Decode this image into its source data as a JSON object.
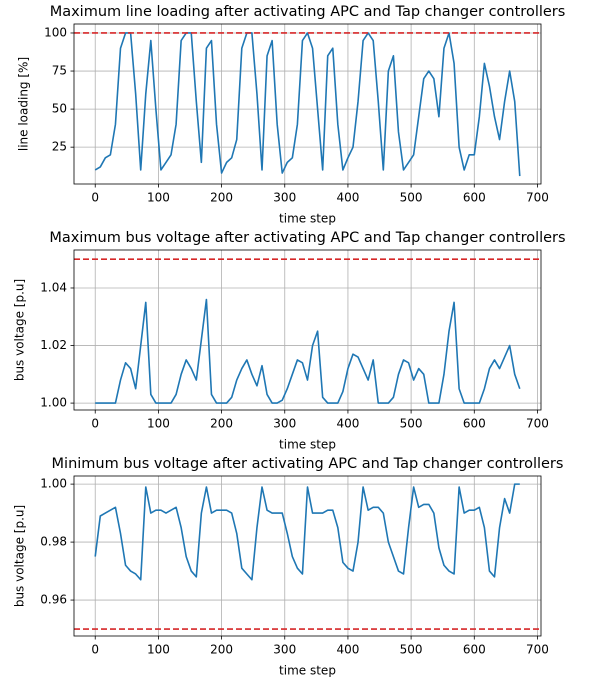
{
  "chart_data": [
    {
      "type": "line",
      "title": "Maximum line loading after activating APC and Tap changer controllers",
      "xlabel": "time step",
      "ylabel": "line loading [%]",
      "x": [
        0,
        8,
        16,
        24,
        32,
        40,
        48,
        56,
        64,
        72,
        80,
        88,
        96,
        104,
        112,
        120,
        128,
        136,
        144,
        152,
        160,
        168,
        176,
        184,
        192,
        200,
        208,
        216,
        224,
        232,
        240,
        248,
        256,
        264,
        272,
        280,
        288,
        296,
        304,
        312,
        320,
        328,
        336,
        344,
        352,
        360,
        368,
        376,
        384,
        392,
        400,
        408,
        416,
        424,
        432,
        440,
        448,
        456,
        464,
        472,
        480,
        488,
        496,
        504,
        512,
        520,
        528,
        536,
        544,
        552,
        560,
        568,
        576,
        584,
        592,
        600,
        608,
        616,
        624,
        632,
        640,
        648,
        656,
        664,
        672
      ],
      "series": [
        {
          "color": "#1f77b4",
          "values": [
            10,
            12,
            18,
            20,
            40,
            90,
            100,
            100,
            60,
            10,
            60,
            95,
            50,
            10,
            15,
            20,
            40,
            95,
            100,
            100,
            55,
            15,
            90,
            95,
            40,
            8,
            15,
            18,
            30,
            90,
            100,
            100,
            60,
            10,
            85,
            95,
            40,
            8,
            15,
            18,
            40,
            95,
            100,
            90,
            50,
            10,
            85,
            90,
            40,
            10,
            18,
            25,
            55,
            95,
            100,
            95,
            55,
            10,
            75,
            85,
            35,
            10,
            15,
            20,
            45,
            70,
            75,
            70,
            45,
            90,
            100,
            80,
            25,
            10,
            20,
            20,
            45,
            80,
            65,
            45,
            30,
            55,
            75,
            55,
            6
          ]
        }
      ],
      "threshold": {
        "value": 100,
        "color": "#d62728"
      },
      "xlim": [
        -33.6,
        705.6
      ],
      "xticks": [
        0,
        100,
        200,
        300,
        400,
        500,
        600,
        700
      ],
      "ylim": [
        0.8,
        105.9
      ],
      "yticks": [
        25,
        50,
        75,
        100
      ],
      "grid": true
    },
    {
      "type": "line",
      "title": "Maximum bus voltage after activating APC and Tap changer controllers",
      "xlabel": "time step",
      "ylabel": "bus voltage [p.u]",
      "x": [
        0,
        8,
        16,
        24,
        32,
        40,
        48,
        56,
        64,
        72,
        80,
        88,
        96,
        104,
        112,
        120,
        128,
        136,
        144,
        152,
        160,
        168,
        176,
        184,
        192,
        200,
        208,
        216,
        224,
        232,
        240,
        248,
        256,
        264,
        272,
        280,
        288,
        296,
        304,
        312,
        320,
        328,
        336,
        344,
        352,
        360,
        368,
        376,
        384,
        392,
        400,
        408,
        416,
        424,
        432,
        440,
        448,
        456,
        464,
        472,
        480,
        488,
        496,
        504,
        512,
        520,
        528,
        536,
        544,
        552,
        560,
        568,
        576,
        584,
        592,
        600,
        608,
        616,
        624,
        632,
        640,
        648,
        656,
        664,
        672
      ],
      "series": [
        {
          "color": "#1f77b4",
          "values": [
            1.0,
            1.0,
            1.0,
            1.0,
            1.0,
            1.008,
            1.014,
            1.012,
            1.005,
            1.02,
            1.035,
            1.003,
            1.0,
            1.0,
            1.0,
            1.0,
            1.003,
            1.01,
            1.015,
            1.012,
            1.008,
            1.022,
            1.036,
            1.003,
            1.0,
            1.0,
            1.0,
            1.002,
            1.008,
            1.012,
            1.015,
            1.01,
            1.006,
            1.013,
            1.003,
            1.0,
            1.0,
            1.001,
            1.005,
            1.01,
            1.015,
            1.014,
            1.008,
            1.02,
            1.025,
            1.002,
            1.0,
            1.0,
            1.0,
            1.004,
            1.012,
            1.017,
            1.016,
            1.012,
            1.008,
            1.015,
            1.0,
            1.0,
            1.0,
            1.002,
            1.01,
            1.015,
            1.014,
            1.008,
            1.012,
            1.01,
            1.0,
            1.0,
            1.0,
            1.01,
            1.025,
            1.035,
            1.005,
            1.0,
            1.0,
            1.0,
            1.0,
            1.005,
            1.012,
            1.015,
            1.012,
            1.016,
            1.02,
            1.01,
            1.005
          ]
        }
      ],
      "threshold": {
        "value": 1.05,
        "color": "#d62728"
      },
      "xlim": [
        -33.6,
        705.6
      ],
      "xticks": [
        0,
        100,
        200,
        300,
        400,
        500,
        600,
        700
      ],
      "ylim": [
        0.9976,
        1.0532
      ],
      "yticks": [
        {
          "value": 1.0,
          "label": "1.00"
        },
        {
          "value": 1.02,
          "label": "1.02"
        },
        {
          "value": 1.04,
          "label": "1.04"
        }
      ],
      "grid": true
    },
    {
      "type": "line",
      "title": "Minimum bus voltage after activating APC and Tap changer controllers",
      "xlabel": "time step",
      "ylabel": "bus voltage [p.u]",
      "x": [
        0,
        8,
        16,
        24,
        32,
        40,
        48,
        56,
        64,
        72,
        80,
        88,
        96,
        104,
        112,
        120,
        128,
        136,
        144,
        152,
        160,
        168,
        176,
        184,
        192,
        200,
        208,
        216,
        224,
        232,
        240,
        248,
        256,
        264,
        272,
        280,
        288,
        296,
        304,
        312,
        320,
        328,
        336,
        344,
        352,
        360,
        368,
        376,
        384,
        392,
        400,
        408,
        416,
        424,
        432,
        440,
        448,
        456,
        464,
        472,
        480,
        488,
        496,
        504,
        512,
        520,
        528,
        536,
        544,
        552,
        560,
        568,
        576,
        584,
        592,
        600,
        608,
        616,
        624,
        632,
        640,
        648,
        656,
        664,
        672
      ],
      "series": [
        {
          "color": "#1f77b4",
          "values": [
            0.975,
            0.989,
            0.99,
            0.991,
            0.992,
            0.983,
            0.972,
            0.97,
            0.969,
            0.967,
            0.999,
            0.99,
            0.991,
            0.991,
            0.99,
            0.991,
            0.992,
            0.985,
            0.975,
            0.97,
            0.968,
            0.99,
            0.999,
            0.99,
            0.991,
            0.991,
            0.991,
            0.99,
            0.983,
            0.971,
            0.969,
            0.967,
            0.985,
            0.999,
            0.991,
            0.99,
            0.99,
            0.99,
            0.983,
            0.975,
            0.971,
            0.969,
            0.999,
            0.99,
            0.99,
            0.99,
            0.991,
            0.991,
            0.985,
            0.973,
            0.971,
            0.97,
            0.98,
            0.999,
            0.991,
            0.992,
            0.992,
            0.99,
            0.98,
            0.975,
            0.97,
            0.969,
            0.985,
            0.999,
            0.992,
            0.993,
            0.993,
            0.99,
            0.978,
            0.972,
            0.97,
            0.969,
            0.999,
            0.99,
            0.991,
            0.991,
            0.992,
            0.985,
            0.97,
            0.968,
            0.985,
            0.995,
            0.99,
            1.0,
            1.0
          ]
        }
      ],
      "threshold": {
        "value": 0.95,
        "color": "#d62728"
      },
      "xlim": [
        -33.6,
        705.6
      ],
      "xticks": [
        0,
        100,
        200,
        300,
        400,
        500,
        600,
        700
      ],
      "ylim": [
        0.9476,
        1.0028
      ],
      "yticks": [
        {
          "value": 0.96,
          "label": "0.96"
        },
        {
          "value": 0.98,
          "label": "0.98"
        },
        {
          "value": 1.0,
          "label": "1.00"
        }
      ],
      "grid": true
    }
  ]
}
